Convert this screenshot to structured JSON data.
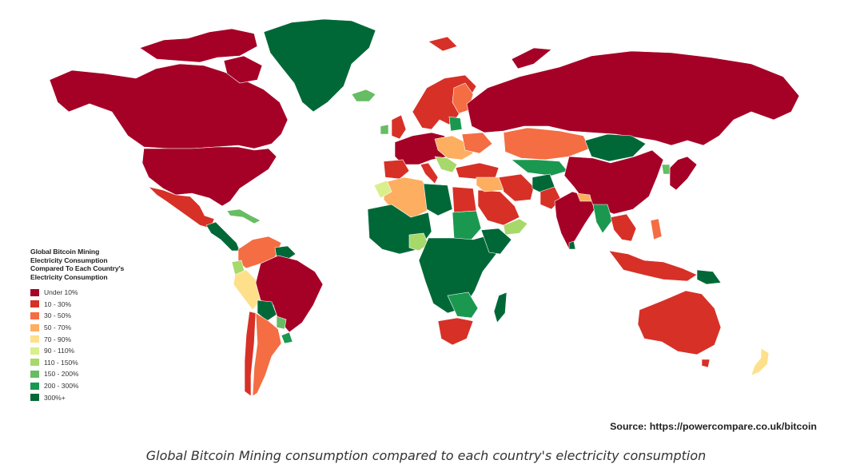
{
  "legend": {
    "title": "Global Bitcoin Mining\nElectricity Consumption\nCompared To Each Country's\nElectricity Consumption",
    "items": [
      {
        "label": "Under 10%",
        "color": "#a50026"
      },
      {
        "label": "10 - 30%",
        "color": "#d73027"
      },
      {
        "label": "30 - 50%",
        "color": "#f46d43"
      },
      {
        "label": "50 - 70%",
        "color": "#fdae61"
      },
      {
        "label": "70 - 90%",
        "color": "#fee08b"
      },
      {
        "label": "90 - 110%",
        "color": "#d9ef8b"
      },
      {
        "label": "110 - 150%",
        "color": "#a6d96a"
      },
      {
        "label": "150 - 200%",
        "color": "#66bd63"
      },
      {
        "label": "200 - 300%",
        "color": "#1a9850"
      },
      {
        "label": "300%+",
        "color": "#006837"
      }
    ]
  },
  "source": "Source: https://powercompare.co.uk/bitcoin",
  "caption": "Global Bitcoin Mining consumption compared to each country's electricity consumption"
}
